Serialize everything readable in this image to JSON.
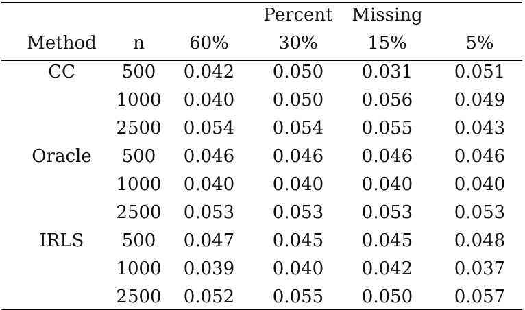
{
  "header": {
    "group_label_left": "Percent",
    "group_label_right": "Missing",
    "columns": [
      "Method",
      "n",
      "60%",
      "30%",
      "15%",
      "5%"
    ]
  },
  "rows": [
    {
      "method": "CC",
      "n": "500",
      "p60": "0.042",
      "p30": "0.050",
      "p15": "0.031",
      "p5": "0.051"
    },
    {
      "method": "",
      "n": "1000",
      "p60": "0.040",
      "p30": "0.050",
      "p15": "0.056",
      "p5": "0.049"
    },
    {
      "method": "",
      "n": "2500",
      "p60": "0.054",
      "p30": "0.054",
      "p15": "0.055",
      "p5": "0.043"
    },
    {
      "method": "Oracle",
      "n": "500",
      "p60": "0.046",
      "p30": "0.046",
      "p15": "0.046",
      "p5": "0.046"
    },
    {
      "method": "",
      "n": "1000",
      "p60": "0.040",
      "p30": "0.040",
      "p15": "0.040",
      "p5": "0.040"
    },
    {
      "method": "",
      "n": "2500",
      "p60": "0.053",
      "p30": "0.053",
      "p15": "0.053",
      "p5": "0.053"
    },
    {
      "method": "IRLS",
      "n": "500",
      "p60": "0.047",
      "p30": "0.045",
      "p15": "0.045",
      "p5": "0.048"
    },
    {
      "method": "",
      "n": "1000",
      "p60": "0.039",
      "p30": "0.040",
      "p15": "0.042",
      "p5": "0.037"
    },
    {
      "method": "",
      "n": "2500",
      "p60": "0.052",
      "p30": "0.055",
      "p15": "0.050",
      "p5": "0.057"
    }
  ]
}
